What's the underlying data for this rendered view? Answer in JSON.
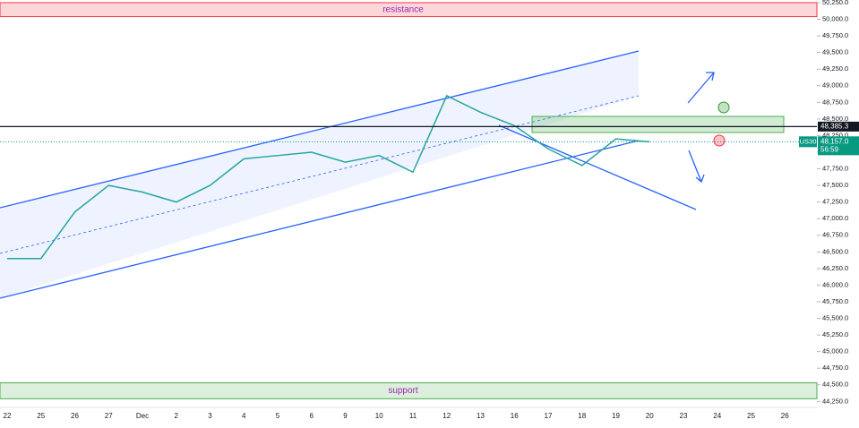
{
  "chart_data": {
    "type": "line",
    "categories": [
      "22",
      "25",
      "26",
      "27",
      "Dec",
      "2",
      "3",
      "4",
      "5",
      "6",
      "9",
      "10",
      "11",
      "12",
      "13",
      "16",
      "17",
      "18",
      "19",
      "20",
      "23",
      "24",
      "25",
      "26"
    ],
    "series": [
      {
        "name": "US30",
        "color": "#26a69a",
        "values": [
          46400,
          46400,
          47100,
          47500,
          47400,
          47250,
          47500,
          47900,
          47950,
          48000,
          47850,
          47950,
          47700,
          48850,
          48600,
          48400,
          48050,
          47800,
          48200,
          48157,
          null,
          null,
          null,
          null
        ]
      }
    ],
    "ylim": [
      44160,
      50290
    ],
    "yticks": [
      {
        "value": 50250,
        "label": "50,250.0"
      },
      {
        "value": 50000,
        "label": "50,000.0"
      },
      {
        "value": 49750,
        "label": "49,750.0"
      },
      {
        "value": 49500,
        "label": "49,500.0"
      },
      {
        "value": 49250,
        "label": "49,250.0"
      },
      {
        "value": 49000,
        "label": "49,000.0"
      },
      {
        "value": 48750,
        "label": "48,750.0"
      },
      {
        "value": 48500,
        "label": "48,500.0"
      },
      {
        "value": 48250,
        "label": "48,250.0"
      },
      {
        "value": 48000,
        "label": "48,000.0"
      },
      {
        "value": 47750,
        "label": "47,750.0"
      },
      {
        "value": 47500,
        "label": "47,500.0"
      },
      {
        "value": 47250,
        "label": "47,250.0"
      },
      {
        "value": 47000,
        "label": "47,000.0"
      },
      {
        "value": 46750,
        "label": "46,750.0"
      },
      {
        "value": 46500,
        "label": "46,500.0"
      },
      {
        "value": 46250,
        "label": "46,250.0"
      },
      {
        "value": 46000,
        "label": "46,000.0"
      },
      {
        "value": 45750,
        "label": "45,750.0"
      },
      {
        "value": 45500,
        "label": "45,500.0"
      },
      {
        "value": 45250,
        "label": "45,250.0"
      },
      {
        "value": 45000,
        "label": "45,000.0"
      },
      {
        "value": 44750,
        "label": "44,750.0"
      },
      {
        "value": 44500,
        "label": "44,500.0"
      },
      {
        "value": 44250,
        "label": "44,250.0"
      }
    ],
    "zones": [
      {
        "label": "resistance",
        "range": [
          50040,
          50250
        ],
        "color": "#f23645"
      },
      {
        "label": "support",
        "range": [
          44290,
          44530
        ],
        "color": "#4caf50"
      }
    ],
    "level": {
      "value": 48385.3,
      "label": "48,385.3"
    },
    "last_price": {
      "value": 48157,
      "label": "48,157.0"
    },
    "timer": "56:59"
  }
}
